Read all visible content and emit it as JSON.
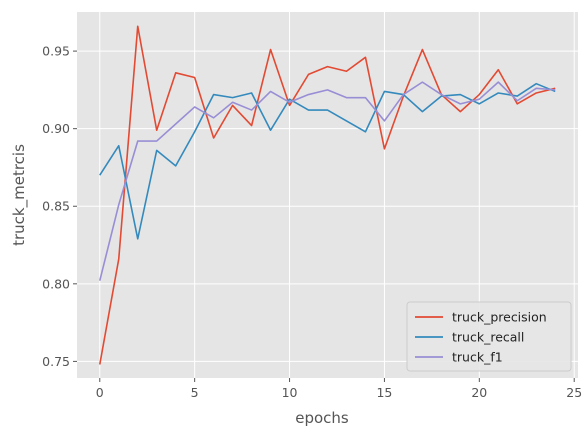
{
  "chart_data": {
    "type": "line",
    "title": "",
    "xlabel": "epochs",
    "ylabel": "truck_metrcis",
    "xlim": [
      -1.2,
      25.2
    ],
    "ylim": [
      0.7393,
      0.9752
    ],
    "xticks": [
      0,
      5,
      10,
      15,
      20,
      25
    ],
    "yticks": [
      0.75,
      0.8,
      0.85,
      0.9,
      0.95
    ],
    "ytick_labels": [
      "0.75",
      "0.80",
      "0.85",
      "0.90",
      "0.95"
    ],
    "grid": true,
    "legend_position": "bottom-right",
    "background": "#E5E5E5",
    "x": [
      0,
      1,
      2,
      3,
      4,
      5,
      6,
      7,
      8,
      9,
      10,
      11,
      12,
      13,
      14,
      15,
      16,
      17,
      18,
      19,
      20,
      21,
      22,
      23,
      24
    ],
    "series": [
      {
        "name": "truck_precision",
        "color": "#E24A33",
        "values": [
          0.748,
          0.816,
          0.966,
          0.899,
          0.936,
          0.933,
          0.894,
          0.915,
          0.902,
          0.951,
          0.915,
          0.935,
          0.94,
          0.937,
          0.946,
          0.887,
          0.921,
          0.951,
          0.922,
          0.911,
          0.922,
          0.938,
          0.916,
          0.923,
          0.926
        ]
      },
      {
        "name": "truck_recall",
        "color": "#348ABD",
        "values": [
          0.87,
          0.889,
          0.829,
          0.886,
          0.876,
          0.898,
          0.922,
          0.92,
          0.923,
          0.899,
          0.919,
          0.912,
          0.912,
          0.905,
          0.898,
          0.924,
          0.922,
          0.911,
          0.921,
          0.922,
          0.916,
          0.923,
          0.921,
          0.929,
          0.924
        ]
      },
      {
        "name": "truck_f1",
        "color": "#988ED5",
        "values": [
          0.802,
          0.851,
          0.892,
          0.892,
          0.903,
          0.914,
          0.907,
          0.917,
          0.912,
          0.924,
          0.917,
          0.922,
          0.925,
          0.92,
          0.92,
          0.905,
          0.922,
          0.93,
          0.922,
          0.916,
          0.919,
          0.93,
          0.918,
          0.926,
          0.925
        ]
      }
    ]
  }
}
